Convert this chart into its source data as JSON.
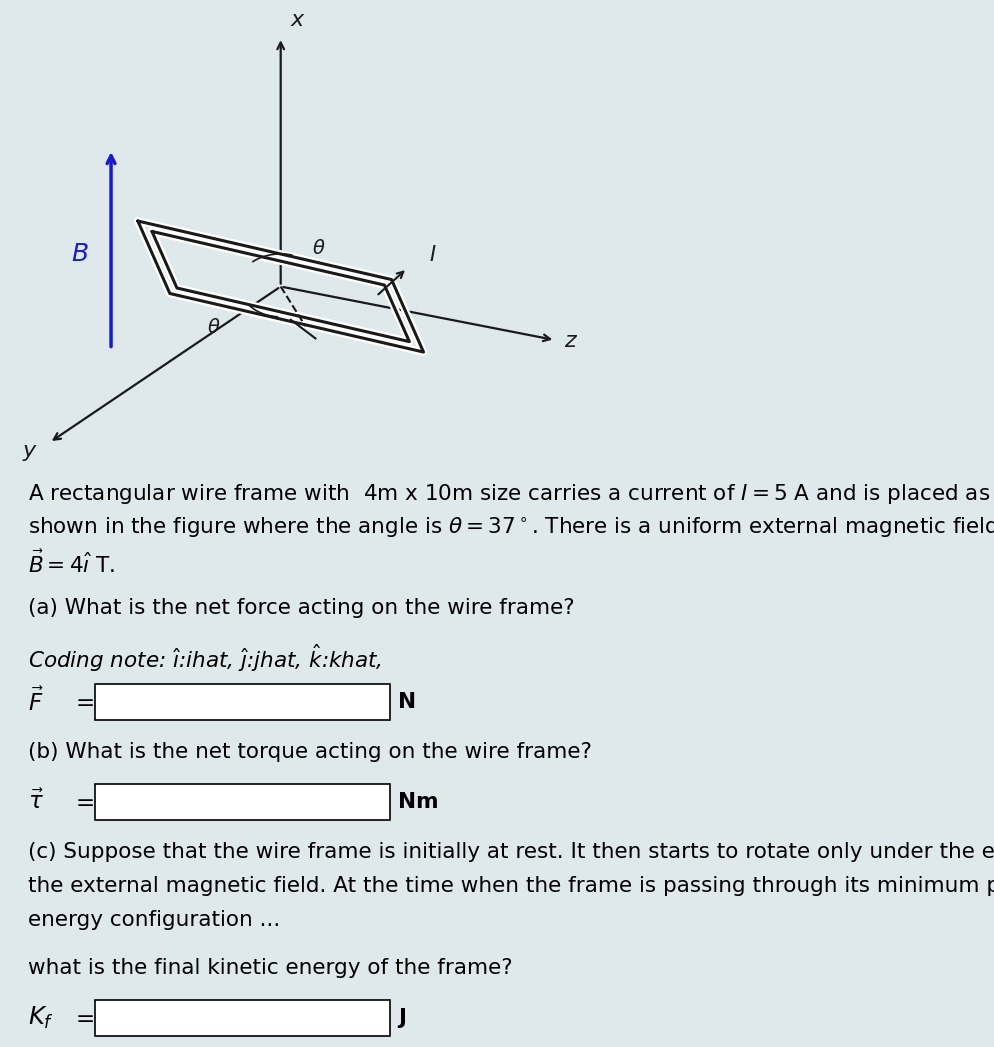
{
  "bg_color": "#dfe8ea",
  "fig_width": 9.95,
  "fig_height": 10.47,
  "axis_color": "#1a1a1a",
  "B_color": "#1a1acc",
  "frame_color": "#1a1a1a",
  "x_label": "x",
  "z_label": "z",
  "y_label": "y",
  "B_label": "B",
  "I_label": "I",
  "theta_label": "\\theta",
  "part_a": "(a) What is the net force acting on the wire frame?",
  "coding_note": "Coding note: $\\hat{\\imath}$:ihat, $\\hat{\\jmath}$:jhat, $\\hat{k}$:khat,",
  "force_label": "$\\vec{F}$",
  "force_unit": "N",
  "part_b": "(b) What is the net torque acting on the wire frame?",
  "torque_label": "$\\vec{\\tau}$",
  "torque_unit": "Nm",
  "part_c1": "(c) Suppose that the wire frame is initially at rest. It then starts to rotate only under the effect of",
  "part_c2": "the external magnetic field. At the time when the frame is passing through its minimum potential",
  "part_c3": "energy configuration ...",
  "kinetic_q": "what is the final kinetic energy of the frame?",
  "ke_label": "$K_f$",
  "ke_unit": "J",
  "desc1": "A rectangular wire frame with  $4$m x $10$m size carries a current of $I = 5$ A and is placed as",
  "desc2": "shown in the figure where the angle is $\\theta = 37^\\circ$. There is a uniform external magnetic field",
  "desc3": "$\\vec{B} = 4\\hat{\\imath}$ T."
}
